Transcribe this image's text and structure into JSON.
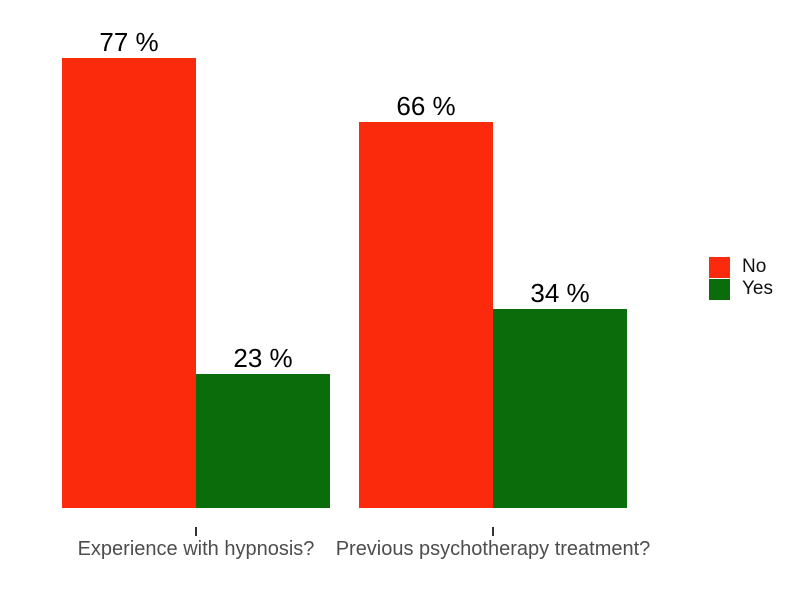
{
  "chart_data": {
    "type": "bar",
    "title": "",
    "xlabel": "",
    "ylabel": "",
    "categories": [
      "Experience with hypnosis?",
      "Previous psychotherapy treatment?"
    ],
    "series": [
      {
        "name": "No",
        "color": "#fb2a0d",
        "values": [
          77,
          66
        ],
        "labels": [
          "77 %",
          "66 %"
        ]
      },
      {
        "name": "Yes",
        "color": "#0a6c0a",
        "values": [
          23,
          34
        ],
        "labels": [
          "23 %",
          "34 %"
        ]
      }
    ],
    "value_unit": "%",
    "ylim": [
      0,
      80
    ],
    "grid": false,
    "axis_lines": false,
    "legend_position": "right"
  },
  "legend": {
    "entries": [
      {
        "label": "No",
        "color": "#fb2a0d"
      },
      {
        "label": "Yes",
        "color": "#0a6c0a"
      }
    ]
  },
  "colors": {
    "background": "#ffffff",
    "value_text": "#000000",
    "axis_text": "#4d4d4d",
    "tick": "#333333"
  }
}
